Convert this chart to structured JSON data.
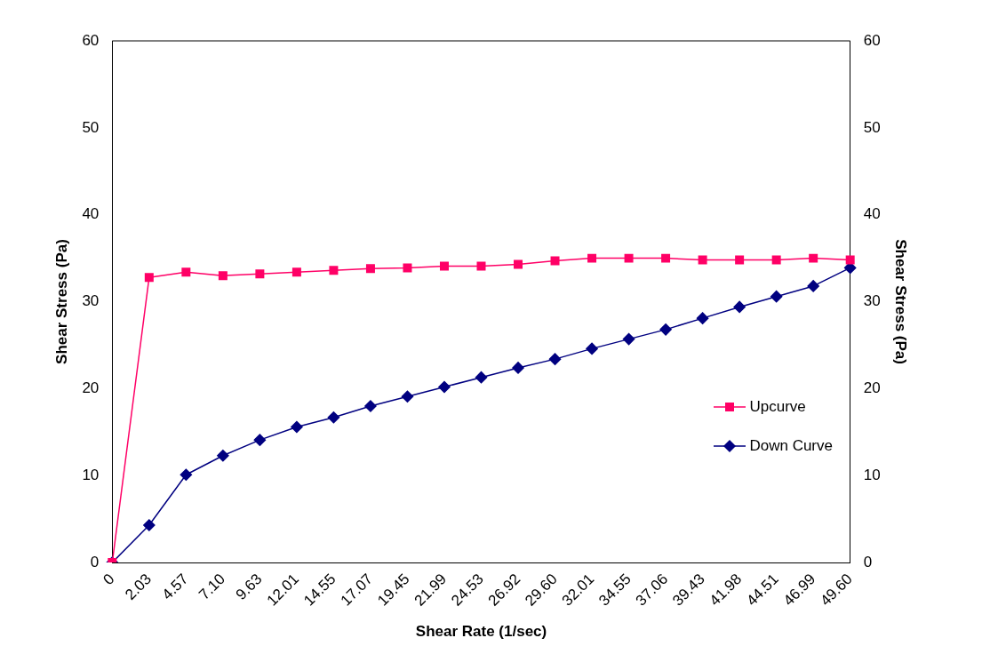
{
  "chart_data": {
    "type": "line",
    "xlabel": "Shear Rate (1/sec)",
    "ylabel": "Shear Stress (Pa)",
    "y2label": "Shear Stress (Pa)",
    "categories": [
      "0",
      "2.03",
      "4.57",
      "7.10",
      "9.63",
      "12.01",
      "14.55",
      "17.07",
      "19.45",
      "21.99",
      "24.53",
      "26.92",
      "29.60",
      "32.01",
      "34.55",
      "37.06",
      "39.43",
      "41.98",
      "44.51",
      "46.99",
      "49.60"
    ],
    "series": [
      {
        "name": "Upcurve",
        "color": "#ff0066",
        "marker": "square",
        "values": [
          0,
          32.8,
          33.4,
          33.0,
          33.2,
          33.4,
          33.6,
          33.8,
          33.9,
          34.1,
          34.1,
          34.3,
          34.7,
          35.0,
          35.0,
          35.0,
          34.8,
          34.8,
          34.8,
          35.0,
          34.8
        ]
      },
      {
        "name": "Down Curve",
        "color": "#000080",
        "marker": "diamond",
        "values": [
          0,
          4.3,
          10.1,
          12.3,
          14.1,
          15.6,
          16.7,
          18.0,
          19.1,
          20.2,
          21.3,
          22.4,
          23.4,
          24.6,
          25.7,
          26.8,
          28.1,
          29.4,
          30.6,
          31.8,
          33.9
        ]
      }
    ],
    "ylim": [
      0,
      60
    ],
    "yticks": [
      0,
      10,
      20,
      30,
      40,
      50,
      60
    ],
    "y2lim": [
      0,
      60
    ],
    "y2ticks": [
      0,
      10,
      20,
      30,
      40,
      50,
      60
    ],
    "grid": false,
    "legend": "right",
    "line_style": "solid"
  }
}
